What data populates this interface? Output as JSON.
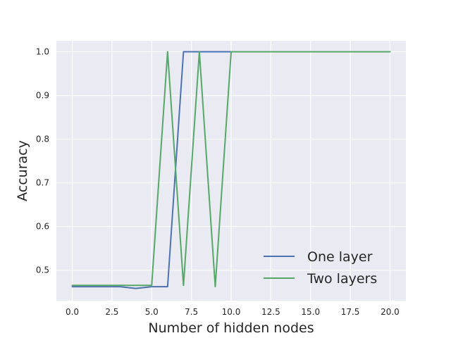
{
  "chart_data": {
    "type": "line",
    "title": "",
    "xlabel": "Number of hidden nodes",
    "ylabel": "Accuracy",
    "xlim": [
      -1,
      21
    ],
    "ylim": [
      0.43,
      1.025
    ],
    "xticks": [
      0,
      2.5,
      5,
      7.5,
      10,
      12.5,
      15,
      17.5,
      20
    ],
    "xtick_labels": [
      "0.0",
      "2.5",
      "5.0",
      "7.5",
      "10.0",
      "12.5",
      "15.0",
      "17.5",
      "20.0"
    ],
    "yticks": [
      0.5,
      0.6,
      0.7,
      0.8,
      0.9,
      1.0
    ],
    "ytick_labels": [
      "0.5",
      "0.6",
      "0.7",
      "0.8",
      "0.9",
      "1.0"
    ],
    "grid": true,
    "legend_position": "lower-right",
    "x": [
      0,
      1,
      2,
      3,
      4,
      5,
      6,
      7,
      8,
      9,
      10,
      11,
      12,
      13,
      14,
      15,
      16,
      17,
      18,
      19,
      20
    ],
    "series": [
      {
        "name": "One layer",
        "color": "#4c72b0",
        "values": [
          0.462,
          0.462,
          0.462,
          0.462,
          0.458,
          0.462,
          0.462,
          1.0,
          1.0,
          1.0,
          1.0,
          1.0,
          1.0,
          1.0,
          1.0,
          1.0,
          1.0,
          1.0,
          1.0,
          1.0,
          1.0
        ]
      },
      {
        "name": "Two layers",
        "color": "#55a868",
        "values": [
          0.465,
          0.465,
          0.465,
          0.465,
          0.465,
          0.465,
          1.0,
          0.465,
          1.0,
          0.462,
          1.0,
          1.0,
          1.0,
          1.0,
          1.0,
          1.0,
          1.0,
          1.0,
          1.0,
          1.0,
          1.0
        ]
      }
    ]
  },
  "colors": {
    "plot_background": "#eaeaf2",
    "grid": "#ffffff",
    "text": "#262626"
  }
}
